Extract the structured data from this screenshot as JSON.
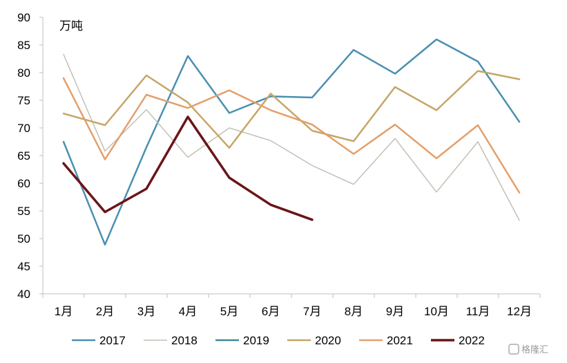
{
  "chart_data": {
    "type": "line",
    "unit": "万吨",
    "categories": [
      "1月",
      "2月",
      "3月",
      "4月",
      "5月",
      "6月",
      "7月",
      "8月",
      "9月",
      "10月",
      "11月",
      "12月"
    ],
    "ylim": [
      40,
      90
    ],
    "yticks": [
      40,
      45,
      50,
      55,
      60,
      65,
      70,
      75,
      80,
      85,
      90
    ],
    "grid": false,
    "legend": "bottom",
    "series": [
      {
        "name": "2017",
        "color": "#4A8FB0",
        "width": 2.5,
        "values": [
          67.5,
          48.9,
          66.5,
          83.0,
          72.7,
          75.7,
          75.5,
          84.1,
          79.8,
          86.0,
          82.0,
          71.1
        ]
      },
      {
        "name": "2018",
        "color": "#C2C0B5",
        "width": 1.5,
        "values": [
          83.3,
          65.8,
          73.3,
          64.7,
          70.0,
          67.7,
          63.2,
          59.8,
          68.1,
          58.4,
          67.5,
          53.3
        ]
      },
      {
        "name": "2019",
        "color": "#3A8A99",
        "width": 2.5,
        "values": [
          null,
          null,
          null,
          null,
          null,
          null,
          null,
          null,
          null,
          null,
          null,
          null
        ]
      },
      {
        "name": "2020",
        "color": "#C6A566",
        "width": 2.5,
        "values": [
          72.6,
          70.5,
          79.5,
          74.6,
          66.4,
          76.2,
          69.5,
          67.6,
          77.4,
          73.2,
          80.3,
          78.8
        ]
      },
      {
        "name": "2021",
        "color": "#E49F6A",
        "width": 2.5,
        "values": [
          79.0,
          64.3,
          76.0,
          73.6,
          76.8,
          73.2,
          70.6,
          65.3,
          70.6,
          64.5,
          70.5,
          58.3
        ]
      },
      {
        "name": "2022",
        "color": "#6B1418",
        "width": 3.5,
        "values": [
          63.6,
          54.8,
          59.0,
          72.0,
          61.0,
          56.1,
          53.4,
          null,
          null,
          null,
          null,
          null
        ]
      }
    ]
  },
  "watermark": "格隆汇"
}
